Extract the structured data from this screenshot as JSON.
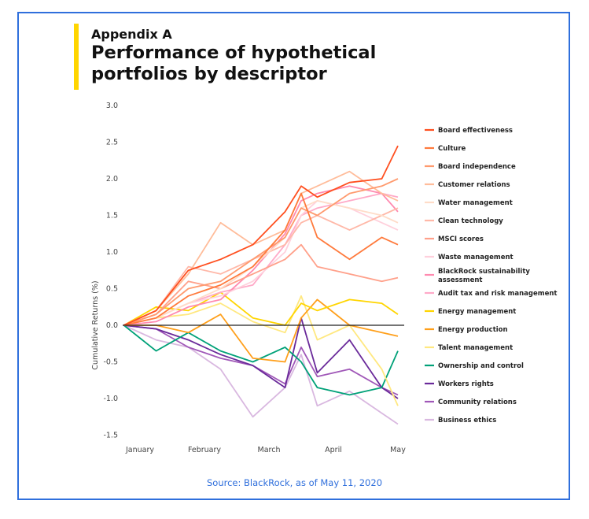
{
  "header": {
    "kicker": "Appendix A",
    "title": "Performance of hypothetical portfolios by descriptor"
  },
  "source": "Source: BlackRock, as of May 11, 2020",
  "chart_data": {
    "type": "line",
    "title": "Performance of hypothetical portfolios by descriptor",
    "xlabel": "",
    "ylabel": "Cumulative Returns (%)",
    "ylim": [
      -1.5,
      3.0
    ],
    "yticks": [
      3.0,
      2.5,
      2.0,
      1.5,
      1.0,
      0.5,
      0.0,
      -0.5,
      -1.0,
      -1.5
    ],
    "ytick_labels": [
      "3.0",
      "2.5",
      "2.0",
      "1.5",
      "1.0",
      "0.5",
      "0.0",
      "-0.5",
      "-1.0",
      "-1.5"
    ],
    "xticks": [
      0,
      1,
      2,
      3,
      4
    ],
    "xtick_labels": [
      "January",
      "February",
      "March",
      "April",
      "May"
    ],
    "xlim": [
      -0.25,
      4.0
    ],
    "x": [
      -0.25,
      0.25,
      0.75,
      1.25,
      1.75,
      2.25,
      2.5,
      2.75,
      3.25,
      3.75,
      4.0
    ],
    "legend_position": "right",
    "series": [
      {
        "name": "Board effectiveness",
        "color": "#ff4f1f",
        "values": [
          0,
          0.2,
          0.75,
          0.9,
          1.1,
          1.55,
          1.9,
          1.75,
          1.95,
          2.0,
          2.45
        ]
      },
      {
        "name": "Culture",
        "color": "#ff7a3c",
        "values": [
          0,
          0.1,
          0.4,
          0.55,
          0.8,
          1.3,
          1.8,
          1.2,
          0.9,
          1.2,
          1.1
        ]
      },
      {
        "name": "Board independence",
        "color": "#ff9a6e",
        "values": [
          0,
          0.15,
          0.5,
          0.6,
          0.9,
          1.2,
          1.6,
          1.5,
          1.8,
          1.9,
          2.0
        ]
      },
      {
        "name": "Customer relations",
        "color": "#ffbc9a",
        "values": [
          0,
          0.2,
          0.7,
          1.4,
          1.1,
          1.3,
          1.8,
          1.9,
          2.1,
          1.8,
          1.7
        ]
      },
      {
        "name": "Water management",
        "color": "#ffdcc8",
        "values": [
          0,
          0.1,
          0.3,
          0.5,
          0.8,
          1.2,
          1.6,
          1.7,
          1.6,
          1.5,
          1.4
        ]
      },
      {
        "name": "Clean technology",
        "color": "#ffb8a8",
        "values": [
          0,
          0.2,
          0.8,
          0.7,
          0.9,
          1.1,
          1.4,
          1.5,
          1.3,
          1.5,
          1.6
        ]
      },
      {
        "name": "MSCI scores",
        "color": "#ffa08a",
        "values": [
          0,
          0.15,
          0.6,
          0.5,
          0.7,
          0.9,
          1.1,
          0.8,
          0.7,
          0.6,
          0.65
        ]
      },
      {
        "name": "Waste management",
        "color": "#ffd0dc",
        "values": [
          0,
          0.1,
          0.3,
          0.4,
          0.6,
          1.0,
          1.5,
          1.7,
          1.6,
          1.4,
          1.3
        ]
      },
      {
        "name": "BlackRock sustainability assessment",
        "color": "#ff8ab0",
        "values": [
          0,
          0.05,
          0.25,
          0.35,
          0.75,
          1.25,
          1.7,
          1.8,
          1.9,
          1.8,
          1.55
        ]
      },
      {
        "name": "Audit tax and risk management",
        "color": "#ffaac8",
        "values": [
          0,
          0.1,
          0.3,
          0.45,
          0.55,
          1.1,
          1.5,
          1.6,
          1.7,
          1.8,
          1.75
        ]
      },
      {
        "name": "Energy management",
        "color": "#ffd500",
        "values": [
          0,
          0.25,
          0.2,
          0.45,
          0.1,
          0.0,
          0.3,
          0.2,
          0.35,
          0.3,
          0.15
        ]
      },
      {
        "name": "Energy production",
        "color": "#ff9f1a",
        "values": [
          0,
          0.0,
          -0.1,
          0.15,
          -0.45,
          -0.5,
          0.1,
          0.35,
          0.0,
          -0.1,
          -0.15
        ]
      },
      {
        "name": "Talent management",
        "color": "#ffe880",
        "values": [
          0,
          0.1,
          0.15,
          0.3,
          0.05,
          -0.1,
          0.4,
          -0.2,
          0.0,
          -0.6,
          -1.1
        ]
      },
      {
        "name": "Ownership and control",
        "color": "#00a178",
        "values": [
          0,
          -0.35,
          -0.1,
          -0.35,
          -0.5,
          -0.3,
          -0.5,
          -0.85,
          -0.95,
          -0.85,
          -0.35
        ]
      },
      {
        "name": "Workers rights",
        "color": "#6a2a9a",
        "values": [
          0,
          -0.05,
          -0.2,
          -0.4,
          -0.55,
          -0.85,
          0.1,
          -0.65,
          -0.2,
          -0.85,
          -1.0
        ]
      },
      {
        "name": "Community relations",
        "color": "#a058b8",
        "values": [
          0,
          -0.05,
          -0.3,
          -0.45,
          -0.55,
          -0.8,
          -0.3,
          -0.7,
          -0.6,
          -0.85,
          -0.95
        ]
      },
      {
        "name": "Business ethics",
        "color": "#d9b8e0",
        "values": [
          0,
          -0.2,
          -0.3,
          -0.6,
          -1.25,
          -0.85,
          -0.4,
          -1.1,
          -0.9,
          -1.2,
          -1.35
        ]
      }
    ]
  }
}
